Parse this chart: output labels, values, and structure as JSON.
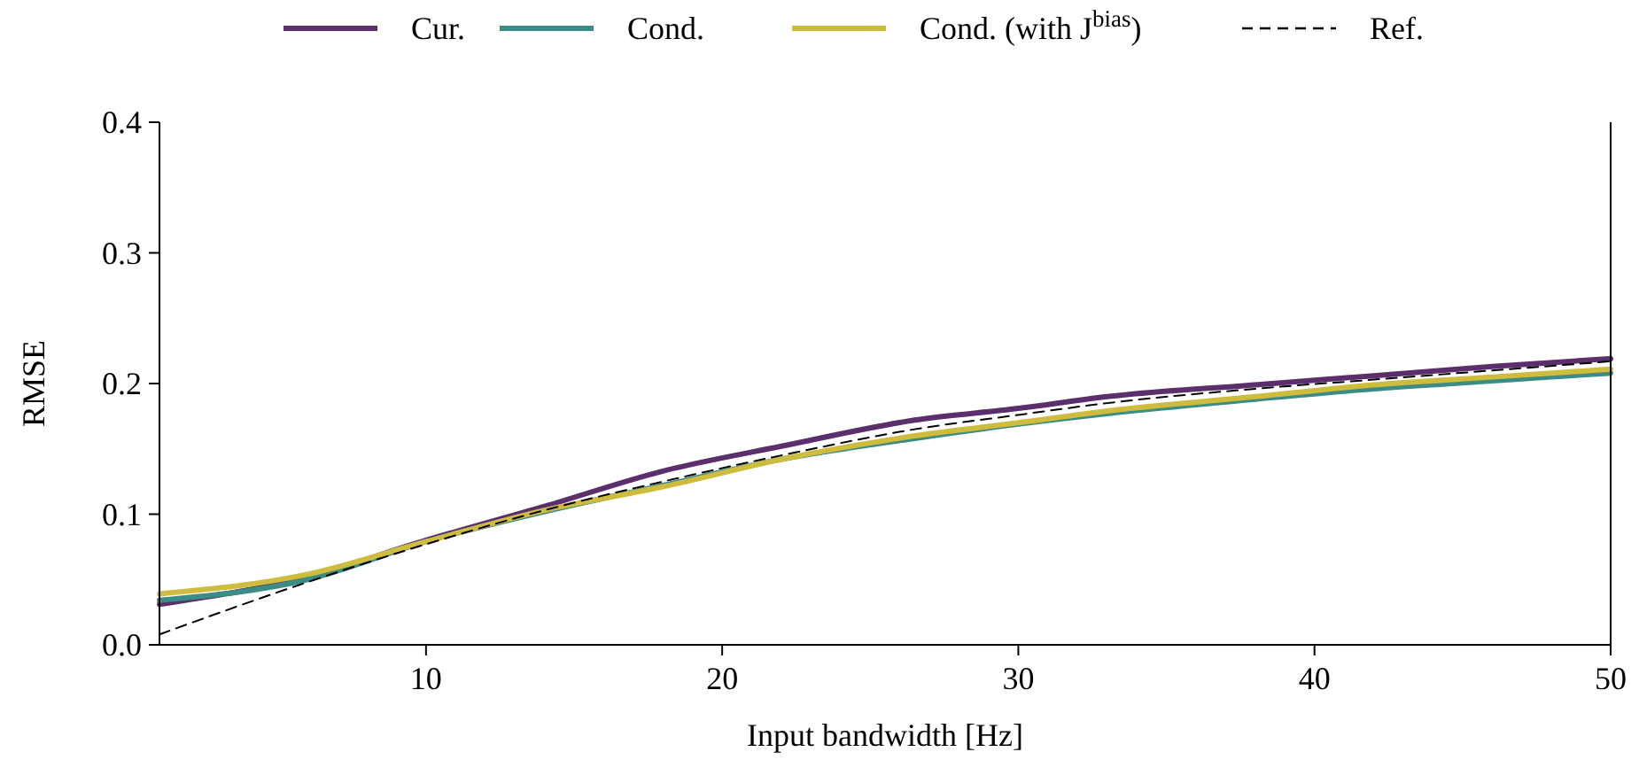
{
  "chart_data": {
    "type": "line",
    "xlabel": "Input bandwidth [Hz]",
    "ylabel": "RMSE",
    "xlim": [
      1,
      50
    ],
    "ylim": [
      0,
      0.4
    ],
    "xticks": [
      10,
      20,
      30,
      40,
      50
    ],
    "yticks": [
      {
        "value": 0,
        "label": "0.0"
      },
      0.1,
      0.2,
      0.3,
      0.4
    ],
    "legend": "top",
    "grid": false,
    "x": [
      1,
      6,
      10,
      14,
      18,
      22,
      26.5,
      30,
      33,
      38,
      42,
      46,
      50
    ],
    "series": [
      {
        "name": "Cur.",
        "color": "#5b2f6c",
        "values": [
          0.031,
          0.052,
          0.08,
          0.106,
          0.133,
          0.152,
          0.172,
          0.181,
          0.19,
          0.199,
          0.206,
          0.213,
          0.219
        ]
      },
      {
        "name": "Cond.",
        "color": "#3b8b87",
        "values": [
          0.034,
          0.05,
          0.079,
          0.102,
          0.122,
          0.142,
          0.158,
          0.169,
          0.177,
          0.188,
          0.196,
          0.202,
          0.208
        ]
      },
      {
        "name": "Cond. (with J$^{bias}$)",
        "color": "#cdbc3e",
        "values": [
          0.039,
          0.054,
          0.079,
          0.103,
          0.121,
          0.142,
          0.16,
          0.17,
          0.179,
          0.19,
          0.199,
          0.205,
          0.211
        ]
      },
      {
        "name": "Ref.",
        "color": "#000000",
        "line_style": "dashed",
        "values": [
          0.008,
          0.048,
          0.077,
          0.103,
          0.125,
          0.145,
          0.165,
          0.176,
          0.185,
          0.196,
          0.203,
          0.21,
          0.217
        ]
      }
    ]
  }
}
